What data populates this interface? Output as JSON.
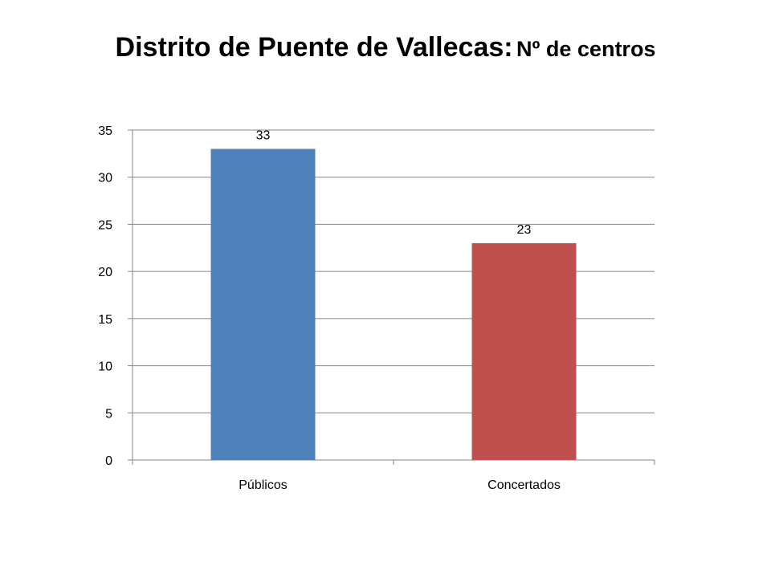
{
  "title": {
    "main": "Distrito de Puente de Vallecas:",
    "sub": "Nº de centros"
  },
  "chart_data": {
    "type": "bar",
    "categories": [
      "Públicos",
      "Concertados"
    ],
    "values": [
      33,
      23
    ],
    "colors": [
      "#4f81bd",
      "#c0504d"
    ],
    "data_labels": [
      "33",
      "23"
    ],
    "xlabel": "",
    "ylabel": "",
    "ylim": [
      0,
      35
    ],
    "yticks": [
      "0",
      "5",
      "10",
      "15",
      "20",
      "25",
      "30",
      "35"
    ],
    "grid": true,
    "legend": "none"
  }
}
